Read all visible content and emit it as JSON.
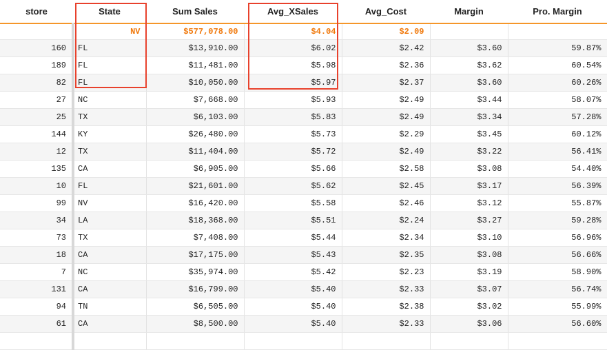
{
  "columns": [
    "store",
    "State",
    "Sum Sales",
    "Avg_XSales",
    "Avg_Cost",
    "Margin",
    "Pro. Margin"
  ],
  "summary": [
    "",
    "NV",
    "$577,078.00",
    "$4.04",
    "$2.09",
    "",
    ""
  ],
  "rows": [
    [
      "160",
      "FL",
      "$13,910.00",
      "$6.02",
      "$2.42",
      "$3.60",
      "59.87%"
    ],
    [
      "189",
      "FL",
      "$11,481.00",
      "$5.98",
      "$2.36",
      "$3.62",
      "60.54%"
    ],
    [
      "82",
      "FL",
      "$10,050.00",
      "$5.97",
      "$2.37",
      "$3.60",
      "60.26%"
    ],
    [
      "27",
      "NC",
      "$7,668.00",
      "$5.93",
      "$2.49",
      "$3.44",
      "58.07%"
    ],
    [
      "25",
      "TX",
      "$6,103.00",
      "$5.83",
      "$2.49",
      "$3.34",
      "57.28%"
    ],
    [
      "144",
      "KY",
      "$26,480.00",
      "$5.73",
      "$2.29",
      "$3.45",
      "60.12%"
    ],
    [
      "12",
      "TX",
      "$11,404.00",
      "$5.72",
      "$2.49",
      "$3.22",
      "56.41%"
    ],
    [
      "135",
      "CA",
      "$6,905.00",
      "$5.66",
      "$2.58",
      "$3.08",
      "54.40%"
    ],
    [
      "10",
      "FL",
      "$21,601.00",
      "$5.62",
      "$2.45",
      "$3.17",
      "56.39%"
    ],
    [
      "99",
      "NV",
      "$16,420.00",
      "$5.58",
      "$2.46",
      "$3.12",
      "55.87%"
    ],
    [
      "34",
      "LA",
      "$18,368.00",
      "$5.51",
      "$2.24",
      "$3.27",
      "59.28%"
    ],
    [
      "73",
      "TX",
      "$7,408.00",
      "$5.44",
      "$2.34",
      "$3.10",
      "56.96%"
    ],
    [
      "18",
      "CA",
      "$17,175.00",
      "$5.43",
      "$2.35",
      "$3.08",
      "56.66%"
    ],
    [
      "7",
      "NC",
      "$35,974.00",
      "$5.42",
      "$2.23",
      "$3.19",
      "58.90%"
    ],
    [
      "131",
      "CA",
      "$16,799.00",
      "$5.40",
      "$2.33",
      "$3.07",
      "56.74%"
    ],
    [
      "94",
      "TN",
      "$6,505.00",
      "$5.40",
      "$2.38",
      "$3.02",
      "55.99%"
    ],
    [
      "61",
      "CA",
      "$8,500.00",
      "$5.40",
      "$2.33",
      "$3.06",
      "56.60%"
    ],
    [
      "",
      "",
      "",
      "",
      "",
      "",
      ""
    ]
  ],
  "colors": {
    "summary": "#f0780a",
    "header_rule": "#f5962a",
    "highlight": "#e8412c"
  }
}
